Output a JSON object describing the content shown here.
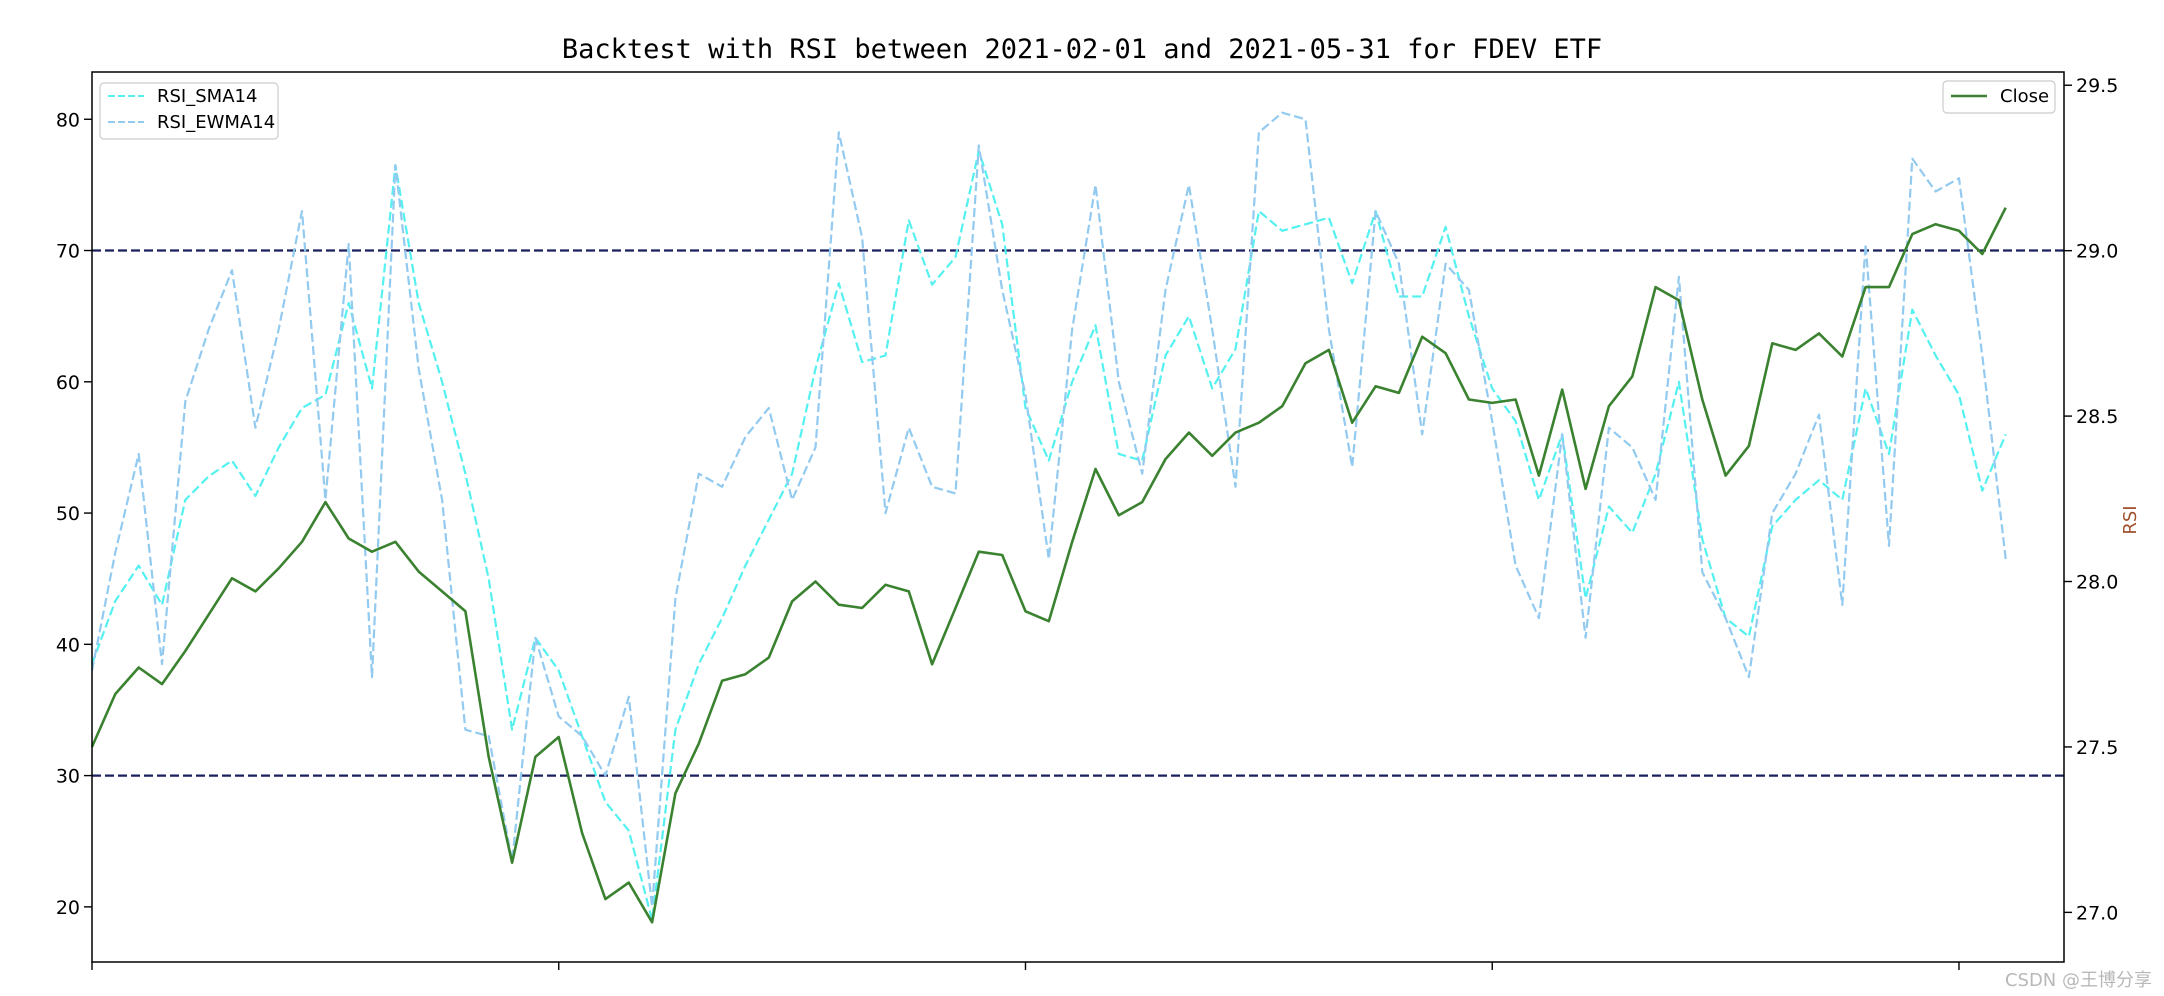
{
  "chart_data": {
    "type": "line",
    "title": "Backtest with RSI between 2021-02-01 and 2021-05-31 for FDEV ETF",
    "xlabel": "",
    "ylabel": "",
    "ylabel_right": "RSI",
    "ylabel_right_color": "#a0522d",
    "xlim": [
      0,
      84.5
    ],
    "ylim": [
      15.8,
      83.6
    ],
    "ylim_right": [
      26.85,
      29.54
    ],
    "x_ticks": [
      0,
      20,
      40,
      60,
      80
    ],
    "y_ticks": [
      20,
      30,
      40,
      50,
      60,
      70,
      80
    ],
    "y_tick_labels": [
      "20",
      "30",
      "40",
      "50",
      "60",
      "70",
      "80"
    ],
    "y_ticks_right": [
      27.0,
      27.5,
      28.0,
      28.5,
      29.0,
      29.5
    ],
    "y_tick_labels_right": [
      "27.0",
      "27.5",
      "28.0",
      "28.5",
      "29.0",
      "29.5"
    ],
    "hlines": [
      {
        "y": 70,
        "color": "#1a1f5e",
        "style": "dashed"
      },
      {
        "y": 30,
        "color": "#1a1f5e",
        "style": "dashed"
      }
    ],
    "series": [
      {
        "name": "RSI_SMA14",
        "axis": "left",
        "color": "#55f0f0",
        "style": "dashed",
        "values": [
          38.5,
          43.3,
          46.0,
          43.0,
          51.0,
          52.8,
          54.0,
          51.3,
          55.0,
          58.0,
          59.0,
          66.0,
          59.5,
          76.5,
          66.0,
          60.0,
          53.0,
          45.0,
          33.5,
          40.5,
          38.0,
          33.0,
          28.0,
          25.8,
          19.0,
          33.5,
          38.5,
          42.0,
          46.0,
          49.5,
          53.0,
          61.0,
          67.5,
          61.5,
          62.0,
          72.3,
          67.4,
          69.5,
          77.6,
          72.0,
          58.0,
          54.0,
          60.0,
          64.3,
          54.5,
          54.0,
          62.0,
          65.0,
          59.5,
          62.5,
          73.0,
          71.5,
          72.0,
          72.5,
          67.5,
          73.0,
          66.5,
          66.5,
          71.8,
          65.0,
          59.5,
          57.0,
          51.0,
          56.0,
          43.5,
          50.5,
          48.5,
          53.0,
          60.0,
          48.0,
          42.0,
          40.6,
          49.0,
          51.0,
          52.5,
          51.0,
          59.5,
          54.5,
          65.5,
          62.0,
          59.0,
          51.7,
          56.0
        ]
      },
      {
        "name": "RSI_EWMA14",
        "axis": "left",
        "color": "#92caf0",
        "style": "dashed",
        "values": [
          38.0,
          47.0,
          54.5,
          38.5,
          58.5,
          64.0,
          68.5,
          56.5,
          64.0,
          73.0,
          51.0,
          70.5,
          37.5,
          76.5,
          61.0,
          51.0,
          33.5,
          33.0,
          23.5,
          40.5,
          34.5,
          33.0,
          30.0,
          36.0,
          20.0,
          43.5,
          53.0,
          52.0,
          55.8,
          58.0,
          51.0,
          55.0,
          79.0,
          71.0,
          50.0,
          56.5,
          52.0,
          51.5,
          78.0,
          67.0,
          59.0,
          46.5,
          64.0,
          75.0,
          60.0,
          53.0,
          67.0,
          75.0,
          64.0,
          52.0,
          79.0,
          80.5,
          80.0,
          64.0,
          53.5,
          73.0,
          69.0,
          56.0,
          69.0,
          67.0,
          57.0,
          46.0,
          42.0,
          56.0,
          40.5,
          56.5,
          55.0,
          51.0,
          68.0,
          45.5,
          42.0,
          37.5,
          50.0,
          53.0,
          57.5,
          43.0,
          70.5,
          47.5,
          77.0,
          74.5,
          75.5,
          62.0,
          46.5
        ]
      },
      {
        "name": "Close",
        "axis": "right",
        "color": "#3a8230",
        "style": "solid",
        "values": [
          27.5,
          27.66,
          27.74,
          27.69,
          27.79,
          27.9,
          28.01,
          27.97,
          28.04,
          28.12,
          28.24,
          28.13,
          28.09,
          28.12,
          28.03,
          27.97,
          27.91,
          27.47,
          27.15,
          27.47,
          27.53,
          27.24,
          27.04,
          27.09,
          26.97,
          27.36,
          27.51,
          27.7,
          27.72,
          27.77,
          27.94,
          28.0,
          27.93,
          27.92,
          27.99,
          27.97,
          27.75,
          27.92,
          28.09,
          28.08,
          27.91,
          27.88,
          28.12,
          28.34,
          28.2,
          28.24,
          28.37,
          28.45,
          28.38,
          28.45,
          28.48,
          28.53,
          28.66,
          28.7,
          28.48,
          28.59,
          28.57,
          28.74,
          28.69,
          28.55,
          28.54,
          28.55,
          28.32,
          28.58,
          28.28,
          28.53,
          28.62,
          28.89,
          28.85,
          28.55,
          28.32,
          28.41,
          28.72,
          28.7,
          28.75,
          28.68,
          28.89,
          28.89,
          29.05,
          29.08,
          29.06,
          28.99,
          29.13
        ]
      }
    ],
    "legend_left": [
      "RSI_SMA14",
      "RSI_EWMA14"
    ],
    "legend_left_position": "upper left",
    "legend_right": [
      "Close"
    ],
    "legend_right_position": "upper right",
    "grid": false
  },
  "watermark": "CSDN @王博分享"
}
